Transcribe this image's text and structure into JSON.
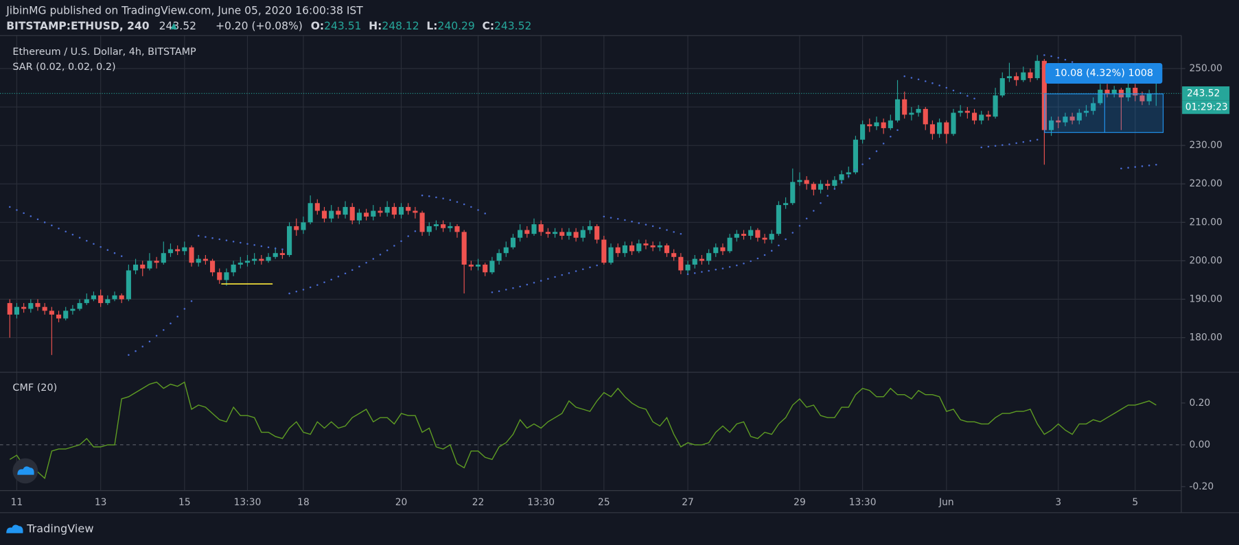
{
  "header": {
    "publisher": "JibinMG published on TradingView.com, June 05, 2020 16:00:38 IST",
    "symbol": "BITSTAMP:ETHUSD, 240",
    "last": "243.52",
    "change": "+0.20 (+0.08%)",
    "ohlc": [
      {
        "key": "O:",
        "value": "243.51"
      },
      {
        "key": "H:",
        "value": "248.12"
      },
      {
        "key": "L:",
        "value": "240.29"
      },
      {
        "key": "C:",
        "value": "243.52"
      }
    ]
  },
  "chart_data": [
    {
      "type": "candlestick",
      "title": "Ethereum / U.S. Dollar, 4h, BITSTAMP",
      "up_color": "#26a69a",
      "down_color": "#ef5350",
      "open": [
        189,
        186,
        188,
        187.5,
        189,
        188,
        187,
        186,
        185,
        187,
        187.5,
        189,
        190,
        191,
        189,
        190,
        191,
        190,
        197.5,
        199,
        198,
        200,
        199.5,
        202,
        203,
        202.5,
        203.5,
        199.5,
        200.5,
        200,
        197,
        195,
        197,
        199,
        199.5,
        200,
        200.5,
        200,
        201,
        202,
        201.5,
        209,
        208,
        210,
        215,
        213,
        211,
        213,
        212,
        214,
        210.5,
        212.5,
        211.5,
        213,
        212.5,
        214,
        212,
        214,
        213,
        212.5,
        207.5,
        209,
        209.5,
        208.5,
        209,
        207.5,
        199,
        198.5,
        199,
        197,
        200,
        202,
        203.5,
        206,
        208,
        207,
        209.5,
        207.5,
        207,
        207.5,
        206.5,
        207.5,
        206,
        208,
        209,
        205.5,
        199.5,
        203.5,
        202,
        204,
        202.5,
        204.5,
        204,
        203.5,
        204,
        202,
        201,
        197.5,
        199,
        200.5,
        200,
        202,
        203.5,
        202.5,
        206,
        207,
        206.5,
        208,
        206,
        205.5,
        207,
        214.5,
        215,
        220.5,
        221,
        220,
        218.5,
        220,
        219.5,
        221,
        222.5,
        223,
        231.5,
        235.5,
        235,
        236,
        234.5,
        236.5,
        242,
        238,
        238.5,
        239.5,
        235.5,
        233,
        236,
        233,
        238.5,
        239,
        238.5,
        236.5,
        238,
        237.5,
        243,
        247.5,
        248,
        247,
        249,
        247.5,
        252,
        234,
        236.5,
        236,
        237.5,
        236.5,
        238.5,
        239,
        241,
        244.5,
        243.5,
        244.5,
        242.5,
        245,
        243,
        241.5,
        243.51
      ],
      "high": [
        190,
        189,
        189,
        190,
        190,
        189,
        188,
        187,
        188,
        188.5,
        190,
        191.5,
        192,
        192.5,
        191,
        192,
        191.5,
        199,
        200.5,
        200,
        202,
        201,
        205,
        204.5,
        204,
        205,
        204,
        201.5,
        201.5,
        200.5,
        198,
        198,
        200,
        201,
        201.5,
        202,
        201.5,
        202,
        203.5,
        203,
        210,
        211,
        211.5,
        217,
        216,
        214,
        214.5,
        214,
        215.5,
        215,
        213.5,
        213.5,
        214.5,
        214,
        215.5,
        215,
        215,
        215,
        214,
        213,
        210,
        210.5,
        210.5,
        210,
        209.5,
        208,
        200,
        200.5,
        199.5,
        201,
        203,
        205,
        207,
        209.5,
        209,
        211,
        210.5,
        208.5,
        208.5,
        208.5,
        208.5,
        208.5,
        209,
        210.5,
        209.5,
        206.5,
        204.5,
        204.5,
        205,
        205,
        205.5,
        205.5,
        205,
        205,
        204.5,
        203,
        202,
        200,
        201.5,
        201.5,
        203,
        204.5,
        204.5,
        207,
        208,
        208,
        209,
        208.5,
        207,
        208,
        215.5,
        216.5,
        224,
        223,
        222,
        220.5,
        221,
        221,
        222,
        223.5,
        224.5,
        232.5,
        236.5,
        237,
        237.5,
        237,
        238,
        247,
        244,
        240,
        240.5,
        240,
        236.5,
        237,
        236.5,
        239.5,
        240.5,
        240,
        239.5,
        239,
        239,
        245,
        249,
        251.5,
        249,
        250.5,
        250,
        253.5,
        252.5,
        237.5,
        237.5,
        238.5,
        238.5,
        239.5,
        240.5,
        242.5,
        246,
        246,
        245.5,
        245,
        246.5,
        246,
        244,
        244.5,
        248.12
      ],
      "low": [
        180,
        185,
        186.5,
        186.5,
        187,
        186,
        175.5,
        184,
        184.5,
        186,
        187,
        188.5,
        189.5,
        188,
        188.5,
        189.5,
        189,
        189.5,
        196.5,
        196,
        197.5,
        198,
        199,
        201,
        201.5,
        201.5,
        198.5,
        198.5,
        199,
        196,
        194,
        193.5,
        196,
        198,
        198.5,
        199,
        199,
        199.5,
        200.5,
        200.5,
        201,
        206.5,
        207,
        209.5,
        212,
        210,
        210,
        211,
        211,
        209.5,
        209.5,
        210.5,
        210.5,
        211.5,
        211.5,
        211,
        211,
        212,
        211,
        206.5,
        206.5,
        208,
        207.5,
        207.5,
        206,
        191.5,
        197.5,
        197.5,
        196,
        196.5,
        199,
        201,
        203,
        205,
        206,
        206.5,
        206.5,
        206,
        206,
        205.5,
        205.5,
        205,
        205,
        207,
        204.5,
        199,
        199,
        201,
        201,
        201.5,
        202,
        203,
        202.5,
        202.5,
        201,
        200,
        196.5,
        196.5,
        198,
        199,
        199,
        201,
        201.5,
        202,
        205,
        205.5,
        205.5,
        205,
        204.5,
        204.5,
        206.5,
        213.5,
        214.5,
        219.5,
        218.5,
        217,
        217.5,
        218.5,
        218.5,
        220,
        221.5,
        222.5,
        230.5,
        233.5,
        234,
        233,
        234,
        236,
        237,
        236.5,
        237.5,
        234,
        231.5,
        232,
        230.5,
        232.5,
        237.5,
        237,
        235.5,
        235.5,
        236.5,
        237,
        242.5,
        246.5,
        245.5,
        246.5,
        246.5,
        247,
        225,
        232.5,
        234.5,
        235,
        235.5,
        235.5,
        237.5,
        238,
        240.5,
        242.5,
        242.5,
        234,
        241.5,
        241.5,
        240.5,
        240.5,
        240.29
      ],
      "close": [
        186,
        188,
        187.5,
        189,
        188,
        187,
        186,
        185,
        187,
        187.5,
        189,
        190,
        191,
        189,
        190,
        191,
        190,
        197.5,
        199,
        198,
        200,
        199.5,
        202,
        203,
        202.5,
        203.5,
        199.5,
        200.5,
        200,
        197,
        195,
        197,
        199,
        199.5,
        200,
        200.5,
        200,
        201,
        202,
        201.5,
        209,
        208,
        210,
        215,
        213,
        211,
        213,
        212,
        214,
        210.5,
        212.5,
        211.5,
        213,
        212.5,
        214,
        212,
        214,
        213,
        212.5,
        207.5,
        209,
        209.5,
        208.5,
        209,
        207.5,
        199,
        198.5,
        199,
        197,
        200,
        202,
        203.5,
        206,
        208,
        207,
        209.5,
        207.5,
        207,
        207.5,
        206.5,
        207.5,
        206,
        208,
        209,
        205.5,
        199.5,
        203.5,
        202,
        204,
        202.5,
        204.5,
        204,
        203.5,
        204,
        202,
        201,
        197.5,
        199,
        200.5,
        200,
        202,
        203.5,
        202.5,
        206,
        207,
        206.5,
        208,
        206,
        205.5,
        207,
        214.5,
        215,
        220.5,
        221,
        220,
        218.5,
        220,
        219.5,
        221,
        222.5,
        223,
        231.5,
        235.5,
        235,
        236,
        234.5,
        236.5,
        242,
        238,
        238.5,
        239.5,
        235.5,
        233,
        236,
        233,
        238.5,
        239,
        238.5,
        236.5,
        238,
        237.5,
        243,
        247.5,
        248,
        247,
        249,
        247.5,
        252,
        234,
        236.5,
        236,
        237.5,
        236.5,
        238.5,
        239,
        241,
        244.5,
        243.5,
        244.5,
        242.5,
        245,
        243,
        241.5,
        243.51,
        243.52
      ],
      "sar": {
        "name": "SAR (0.02, 0.02, 0.2)",
        "color": "#4a6cd4",
        "values": [
          214,
          213.2,
          212.4,
          211.6,
          210.8,
          210,
          209.2,
          208.4,
          207.6,
          206.8,
          206,
          205.2,
          204.4,
          203.6,
          202.8,
          202,
          201.2,
          175.5,
          176.5,
          177.7,
          179,
          180.5,
          182,
          183.7,
          185.5,
          187.5,
          189.5,
          206.5,
          206.2,
          205.9,
          205.6,
          205.3,
          205,
          204.7,
          204.4,
          204.1,
          203.8,
          203.5,
          203.2,
          203,
          191.5,
          192,
          192.5,
          193.1,
          193.7,
          194.4,
          195.1,
          195.9,
          196.7,
          197.6,
          198.5,
          199.5,
          200.5,
          201.6,
          202.7,
          203.9,
          205.1,
          206.4,
          207.7,
          217,
          216.8,
          216.5,
          216.2,
          215.8,
          215.3,
          214.7,
          214,
          213.2,
          212.3,
          191.8,
          192.1,
          192.5,
          192.9,
          193.3,
          193.8,
          194.3,
          194.8,
          195.3,
          195.8,
          196.3,
          196.8,
          197.3,
          197.8,
          198.3,
          198.8,
          211.5,
          211.2,
          210.9,
          210.6,
          210.2,
          209.8,
          209.4,
          209,
          208.5,
          208,
          207.5,
          207,
          196.5,
          196.8,
          197.1,
          197.4,
          197.7,
          198,
          198.4,
          198.8,
          199.3,
          199.9,
          200.6,
          201.5,
          202.6,
          204,
          205.6,
          207.3,
          209.1,
          211,
          213,
          215,
          216.9,
          218.7,
          220.4,
          222,
          223.6,
          225.1,
          226.6,
          228.5,
          230.5,
          232.3,
          234,
          248,
          247.6,
          247.2,
          246.7,
          246.2,
          245.6,
          245,
          244.3,
          243.6,
          242.9,
          242.2,
          229.5,
          229.7,
          229.9,
          230.1,
          230.3,
          230.6,
          230.9,
          231.2,
          231.5,
          253.5,
          253.2,
          252.8,
          252.3,
          251.7,
          251,
          250.2,
          249.4,
          248.6,
          247.8,
          247,
          224,
          224.2,
          224.4,
          224.6,
          224.8,
          225
        ]
      },
      "xlim": [
        -1.4,
        167.6
      ],
      "xticks": [
        {
          "value": 1,
          "label": "11"
        },
        {
          "value": 13,
          "label": "13"
        },
        {
          "value": 25,
          "label": "15"
        },
        {
          "value": 34,
          "label": "13:30"
        },
        {
          "value": 42,
          "label": "18"
        },
        {
          "value": 56,
          "label": "20"
        },
        {
          "value": 67,
          "label": "22"
        },
        {
          "value": 76,
          "label": "13:30"
        },
        {
          "value": 85,
          "label": "25"
        },
        {
          "value": 97,
          "label": "27"
        },
        {
          "value": 113,
          "label": "29"
        },
        {
          "value": 122,
          "label": "13:30"
        },
        {
          "value": 134,
          "label": "Jun"
        },
        {
          "value": 150,
          "label": "3"
        },
        {
          "value": 161,
          "label": "5"
        }
      ],
      "ylim": [
        171,
        258.6
      ],
      "yticks": [
        {
          "value": 180,
          "label": "180.00"
        },
        {
          "value": 190,
          "label": "190.00"
        },
        {
          "value": 200,
          "label": "200.00"
        },
        {
          "value": 210,
          "label": "210.00"
        },
        {
          "value": 220,
          "label": "220.00"
        },
        {
          "value": 230,
          "label": "230.00"
        },
        {
          "value": 240,
          "label": "240.00"
        },
        {
          "value": 250,
          "label": "250.00"
        }
      ],
      "grid": true,
      "last_price": {
        "value": 243.52,
        "label": "243.52"
      },
      "countdown": "01:29:23",
      "measure": "10.08 (4.32%) 1008"
    },
    {
      "type": "line",
      "title": "CMF (20)",
      "series": [
        {
          "name": "CMF (20)",
          "color": "#5f9e23",
          "values": [
            -0.07,
            -0.05,
            -0.1,
            -0.17,
            -0.13,
            -0.16,
            -0.03,
            -0.02,
            -0.02,
            -0.01,
            0.0,
            0.03,
            -0.01,
            -0.01,
            0.0,
            0.0,
            0.22,
            0.23,
            0.25,
            0.27,
            0.29,
            0.3,
            0.27,
            0.29,
            0.28,
            0.3,
            0.17,
            0.19,
            0.18,
            0.15,
            0.12,
            0.11,
            0.18,
            0.14,
            0.14,
            0.13,
            0.06,
            0.06,
            0.04,
            0.03,
            0.08,
            0.11,
            0.06,
            0.05,
            0.11,
            0.08,
            0.11,
            0.08,
            0.09,
            0.13,
            0.15,
            0.17,
            0.11,
            0.13,
            0.13,
            0.1,
            0.15,
            0.14,
            0.14,
            0.06,
            0.08,
            -0.01,
            -0.02,
            0.0,
            -0.09,
            -0.11,
            -0.03,
            -0.03,
            -0.06,
            -0.07,
            -0.01,
            0.01,
            0.05,
            0.12,
            0.08,
            0.1,
            0.08,
            0.11,
            0.13,
            0.15,
            0.21,
            0.18,
            0.17,
            0.16,
            0.21,
            0.25,
            0.23,
            0.27,
            0.23,
            0.2,
            0.18,
            0.17,
            0.11,
            0.09,
            0.13,
            0.05,
            -0.01,
            0.01,
            0.0,
            0.0,
            0.01,
            0.06,
            0.09,
            0.06,
            0.1,
            0.11,
            0.04,
            0.03,
            0.06,
            0.05,
            0.1,
            0.13,
            0.19,
            0.22,
            0.18,
            0.19,
            0.14,
            0.13,
            0.13,
            0.18,
            0.18,
            0.24,
            0.27,
            0.26,
            0.23,
            0.23,
            0.27,
            0.24,
            0.24,
            0.22,
            0.26,
            0.24,
            0.24,
            0.23,
            0.16,
            0.17,
            0.12,
            0.11,
            0.11,
            0.1,
            0.1,
            0.13,
            0.15,
            0.15,
            0.16,
            0.16,
            0.17,
            0.1,
            0.05,
            0.07,
            0.1,
            0.07,
            0.05,
            0.1,
            0.1,
            0.12,
            0.11,
            0.13,
            0.15,
            0.17,
            0.19,
            0.19,
            0.2,
            0.21,
            0.19
          ]
        }
      ],
      "ylim": [
        -0.219,
        0.347
      ],
      "yticks": [
        {
          "value": -0.2,
          "label": "-0.20"
        },
        {
          "value": 0,
          "label": "0.00"
        },
        {
          "value": 0.2,
          "label": "0.20"
        }
      ]
    }
  ],
  "footer": {
    "brand": "TradingView"
  }
}
